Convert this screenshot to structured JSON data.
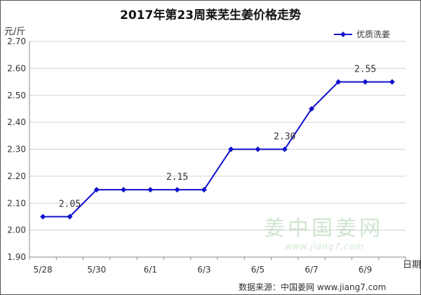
{
  "chart_data": {
    "type": "line",
    "title": "2017年第23周莱芜生姜价格走势",
    "ylabel": "元/斤",
    "xlabel": "日期",
    "ylim": [
      1.9,
      2.7
    ],
    "yticks": [
      "2.70",
      "2.60",
      "2.50",
      "2.40",
      "2.30",
      "2.20",
      "2.10",
      "2.00",
      "1.90"
    ],
    "ytick_values": [
      2.7,
      2.6,
      2.5,
      2.4,
      2.3,
      2.2,
      2.1,
      2.0,
      1.9
    ],
    "x_tick_labels": [
      "5/28",
      "5/30",
      "6/1",
      "6/3",
      "6/5",
      "6/7",
      "6/9"
    ],
    "legend_position": "top-right",
    "grid": "horizontal",
    "series": [
      {
        "name": "优质洗姜",
        "color": "#1010cc",
        "values": [
          2.05,
          2.05,
          2.15,
          2.15,
          2.15,
          2.15,
          2.15,
          2.3,
          2.3,
          2.3,
          2.45,
          2.55,
          2.55,
          2.55
        ]
      }
    ],
    "data_labels": [
      {
        "index": 1,
        "text": "2.05"
      },
      {
        "index": 5,
        "text": "2.15"
      },
      {
        "index": 9,
        "text": "2.30"
      },
      {
        "index": 12,
        "text": "2.55"
      }
    ]
  },
  "footer": "数据来源：中国姜网 www.jiang7.com",
  "watermark": {
    "name": "姜中国姜网",
    "url": "www.jiang7.com"
  }
}
